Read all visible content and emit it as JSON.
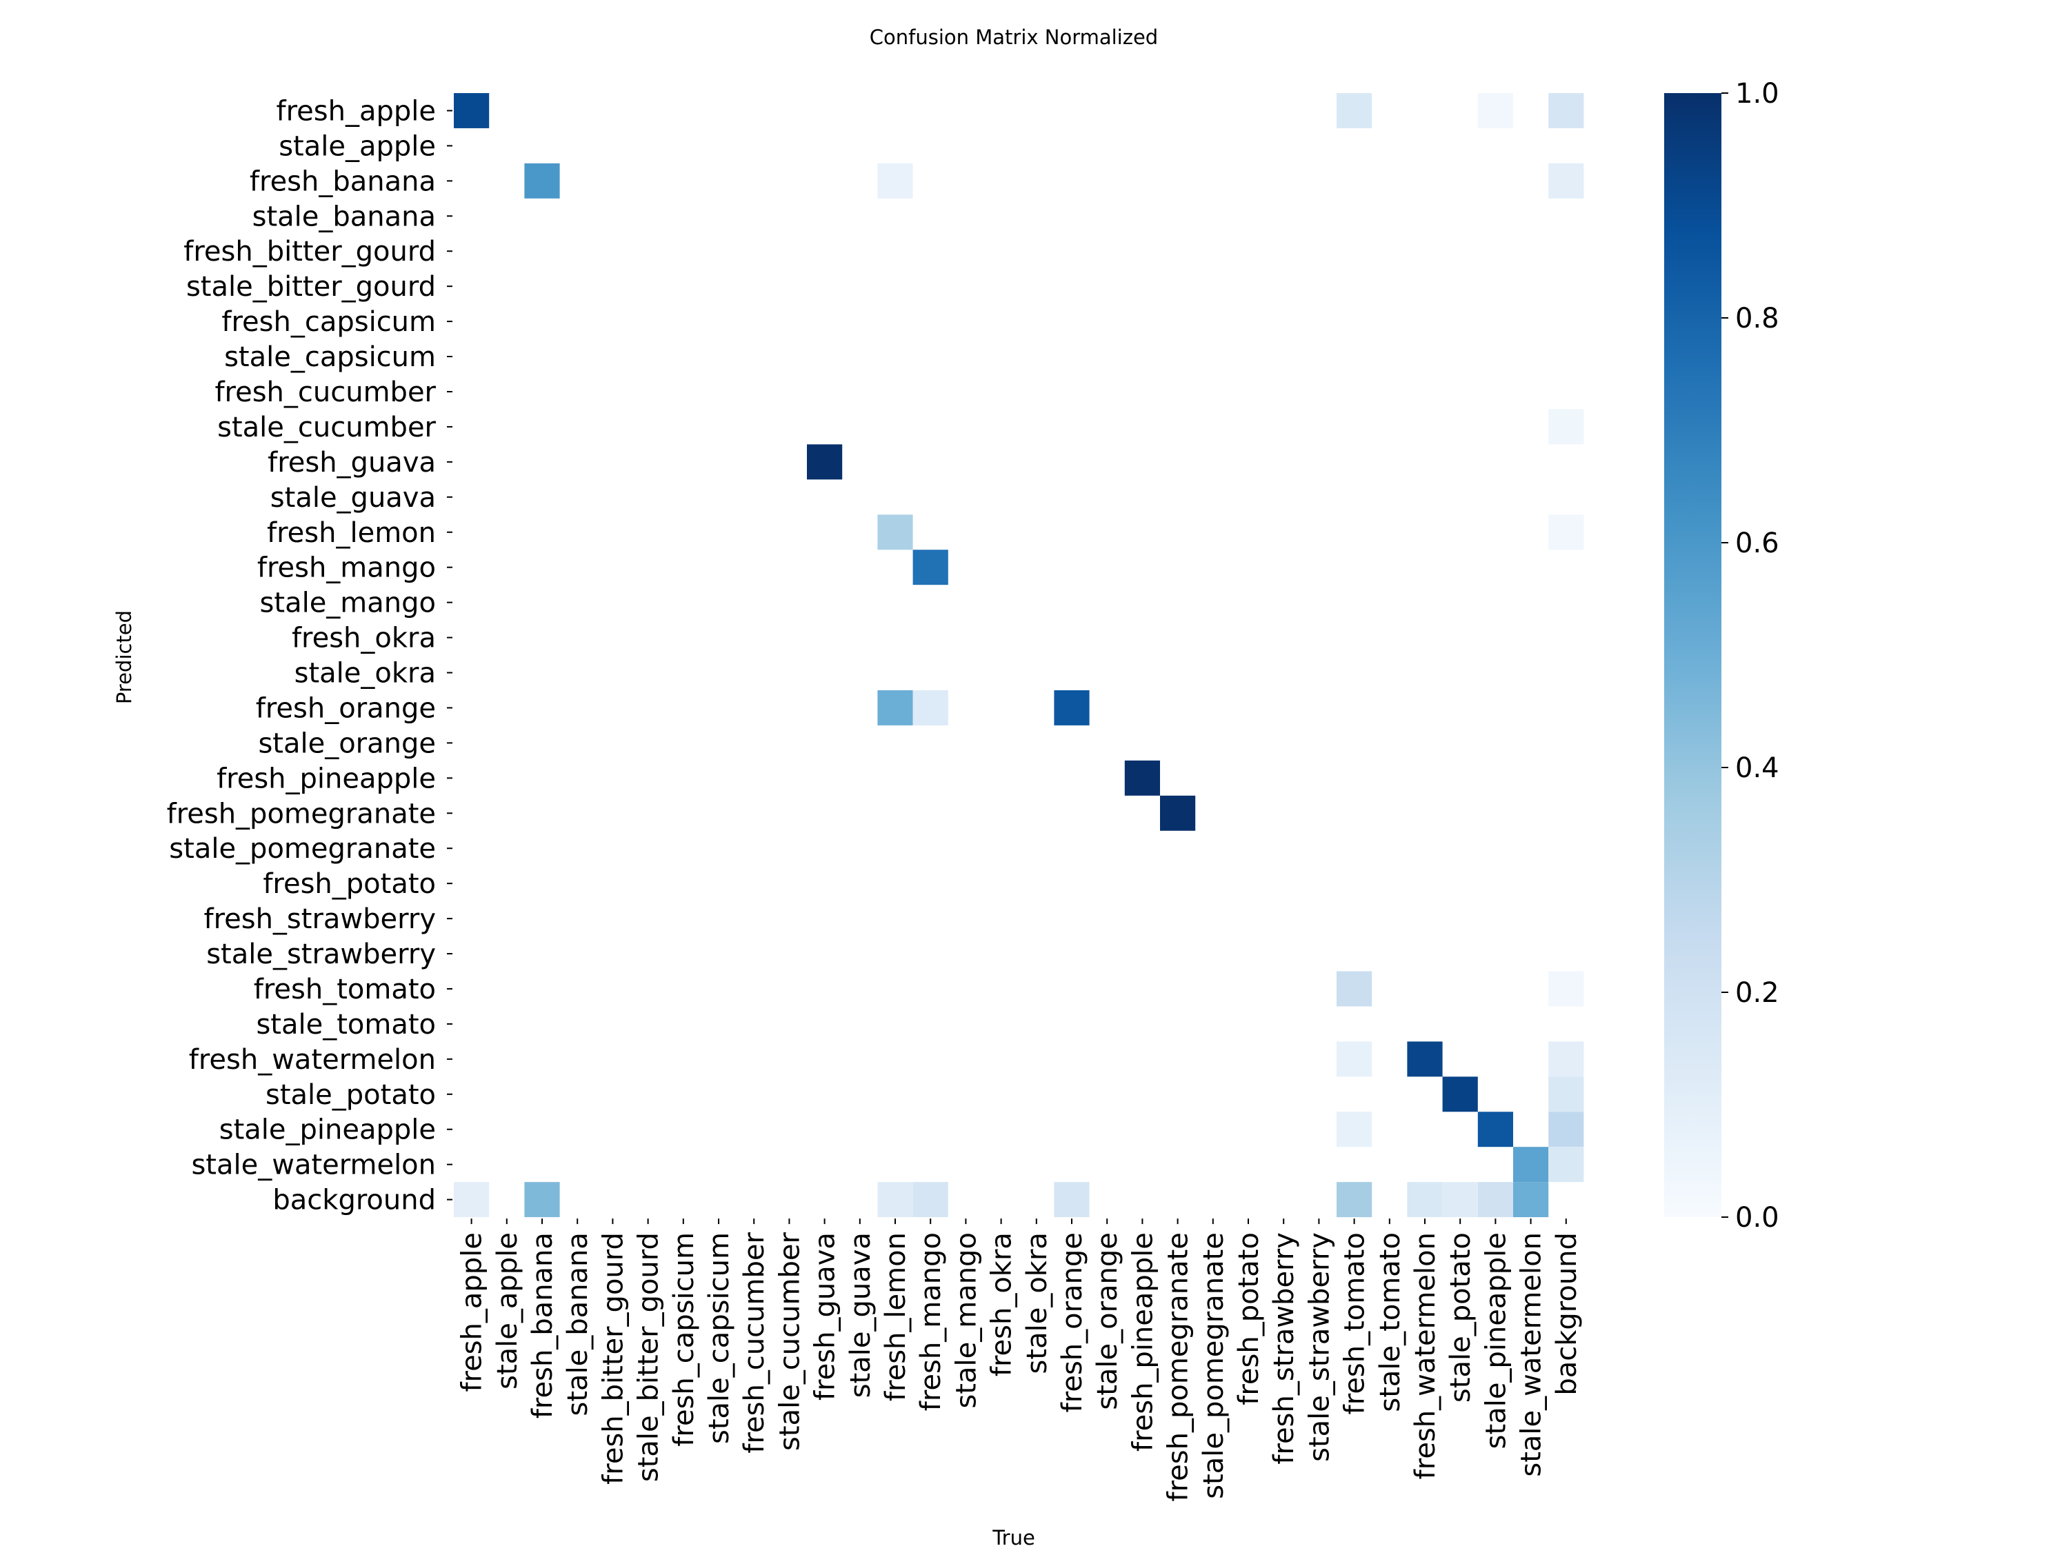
{
  "chart_data": {
    "type": "heatmap",
    "title": "Confusion Matrix Normalized",
    "xlabel": "True",
    "ylabel": "Predicted",
    "labels": [
      "fresh_apple",
      "stale_apple",
      "fresh_banana",
      "stale_banana",
      "fresh_bitter_gourd",
      "stale_bitter_gourd",
      "fresh_capsicum",
      "stale_capsicum",
      "fresh_cucumber",
      "stale_cucumber",
      "fresh_guava",
      "stale_guava",
      "fresh_lemon",
      "fresh_mango",
      "stale_mango",
      "fresh_okra",
      "stale_okra",
      "fresh_orange",
      "stale_orange",
      "fresh_pineapple",
      "fresh_pomegranate",
      "stale_pomegranate",
      "fresh_potato",
      "fresh_strawberry",
      "stale_strawberry",
      "fresh_tomato",
      "stale_tomato",
      "fresh_watermelon",
      "stale_potato",
      "stale_pineapple",
      "stale_watermelon",
      "background"
    ],
    "cells": [
      {
        "predicted": "fresh_apple",
        "true": "fresh_apple",
        "value": 0.9
      },
      {
        "predicted": "fresh_apple",
        "true": "fresh_tomato",
        "value": 0.15
      },
      {
        "predicted": "fresh_apple",
        "true": "stale_pineapple",
        "value": 0.03
      },
      {
        "predicted": "fresh_apple",
        "true": "background",
        "value": 0.17
      },
      {
        "predicted": "fresh_banana",
        "true": "fresh_banana",
        "value": 0.6
      },
      {
        "predicted": "fresh_banana",
        "true": "fresh_lemon",
        "value": 0.07
      },
      {
        "predicted": "fresh_banana",
        "true": "background",
        "value": 0.1
      },
      {
        "predicted": "stale_cucumber",
        "true": "background",
        "value": 0.04
      },
      {
        "predicted": "fresh_guava",
        "true": "fresh_guava",
        "value": 1.0
      },
      {
        "predicted": "fresh_lemon",
        "true": "fresh_lemon",
        "value": 0.33
      },
      {
        "predicted": "fresh_lemon",
        "true": "background",
        "value": 0.03
      },
      {
        "predicted": "fresh_mango",
        "true": "fresh_mango",
        "value": 0.75
      },
      {
        "predicted": "fresh_orange",
        "true": "fresh_lemon",
        "value": 0.5
      },
      {
        "predicted": "fresh_orange",
        "true": "fresh_mango",
        "value": 0.13
      },
      {
        "predicted": "fresh_orange",
        "true": "fresh_orange",
        "value": 0.85
      },
      {
        "predicted": "fresh_pineapple",
        "true": "fresh_pineapple",
        "value": 1.0
      },
      {
        "predicted": "fresh_pomegranate",
        "true": "fresh_pomegranate",
        "value": 1.0
      },
      {
        "predicted": "fresh_tomato",
        "true": "fresh_tomato",
        "value": 0.23
      },
      {
        "predicted": "fresh_tomato",
        "true": "background",
        "value": 0.03
      },
      {
        "predicted": "fresh_watermelon",
        "true": "fresh_tomato",
        "value": 0.08
      },
      {
        "predicted": "fresh_watermelon",
        "true": "fresh_watermelon",
        "value": 0.92
      },
      {
        "predicted": "fresh_watermelon",
        "true": "background",
        "value": 0.1
      },
      {
        "predicted": "stale_potato",
        "true": "stale_potato",
        "value": 0.93
      },
      {
        "predicted": "stale_potato",
        "true": "background",
        "value": 0.15
      },
      {
        "predicted": "stale_pineapple",
        "true": "fresh_tomato",
        "value": 0.08
      },
      {
        "predicted": "stale_pineapple",
        "true": "stale_pineapple",
        "value": 0.85
      },
      {
        "predicted": "stale_pineapple",
        "true": "background",
        "value": 0.27
      },
      {
        "predicted": "stale_watermelon",
        "true": "stale_watermelon",
        "value": 0.55
      },
      {
        "predicted": "stale_watermelon",
        "true": "background",
        "value": 0.15
      },
      {
        "predicted": "background",
        "true": "fresh_apple",
        "value": 0.1
      },
      {
        "predicted": "background",
        "true": "fresh_banana",
        "value": 0.45
      },
      {
        "predicted": "background",
        "true": "fresh_lemon",
        "value": 0.12
      },
      {
        "predicted": "background",
        "true": "fresh_mango",
        "value": 0.17
      },
      {
        "predicted": "background",
        "true": "fresh_orange",
        "value": 0.17
      },
      {
        "predicted": "background",
        "true": "fresh_tomato",
        "value": 0.35
      },
      {
        "predicted": "background",
        "true": "fresh_watermelon",
        "value": 0.15
      },
      {
        "predicted": "background",
        "true": "stale_potato",
        "value": 0.12
      },
      {
        "predicted": "background",
        "true": "stale_pineapple",
        "value": 0.2
      },
      {
        "predicted": "background",
        "true": "stale_watermelon",
        "value": 0.5
      }
    ],
    "colorbar": {
      "range": [
        0.0,
        1.0
      ],
      "ticks": [
        "0.0",
        "0.2",
        "0.4",
        "0.6",
        "0.8",
        "1.0"
      ],
      "colormap": "Blues",
      "colors": [
        "#f7fbff",
        "#deebf7",
        "#c6dbef",
        "#9ecae1",
        "#6baed6",
        "#4292c6",
        "#2171b5",
        "#08519c",
        "#08306b"
      ]
    },
    "grid": false
  }
}
